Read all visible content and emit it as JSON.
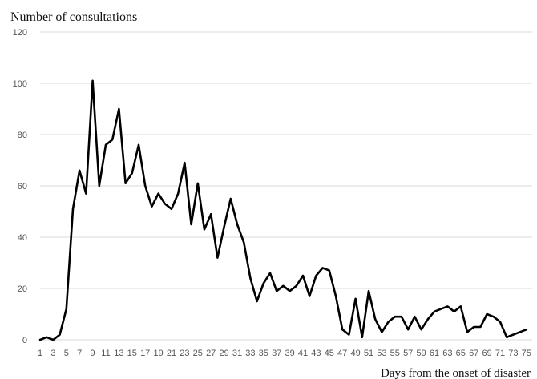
{
  "chart_data": {
    "type": "line",
    "ylabel": "Number of consultations",
    "xlabel": "Days from the onset of disaster",
    "ylim": [
      0,
      120
    ],
    "yticks": [
      0,
      20,
      40,
      60,
      80,
      100,
      120
    ],
    "xticks": [
      1,
      3,
      5,
      7,
      9,
      11,
      13,
      15,
      17,
      19,
      21,
      23,
      25,
      27,
      29,
      31,
      33,
      35,
      37,
      39,
      41,
      43,
      45,
      47,
      49,
      51,
      53,
      55,
      57,
      59,
      61,
      63,
      65,
      67,
      69,
      71,
      73,
      75
    ],
    "grid": true,
    "x": [
      1,
      2,
      3,
      4,
      5,
      6,
      7,
      8,
      9,
      10,
      11,
      12,
      13,
      14,
      15,
      16,
      17,
      18,
      19,
      20,
      21,
      22,
      23,
      24,
      25,
      26,
      27,
      28,
      29,
      30,
      31,
      32,
      33,
      34,
      35,
      36,
      37,
      38,
      39,
      40,
      41,
      42,
      43,
      44,
      45,
      46,
      47,
      48,
      49,
      50,
      51,
      52,
      53,
      54,
      55,
      56,
      57,
      58,
      59,
      60,
      61,
      62,
      63,
      64,
      65,
      66,
      67,
      68,
      69,
      70,
      71,
      72,
      73,
      74,
      75
    ],
    "y": [
      0,
      1,
      0,
      2,
      12,
      51,
      66,
      57,
      101,
      60,
      76,
      78,
      90,
      61,
      65,
      76,
      60,
      52,
      57,
      53,
      51,
      57,
      69,
      45,
      61,
      43,
      49,
      32,
      44,
      55,
      45,
      38,
      24,
      15,
      22,
      26,
      19,
      21,
      19,
      21,
      25,
      17,
      25,
      28,
      27,
      17,
      4,
      2,
      16,
      1,
      19,
      8,
      3,
      7,
      9,
      9,
      4,
      9,
      4,
      8,
      11,
      12,
      13,
      11,
      13,
      3,
      5,
      5,
      10,
      9,
      7,
      1,
      2,
      3,
      4
    ]
  }
}
